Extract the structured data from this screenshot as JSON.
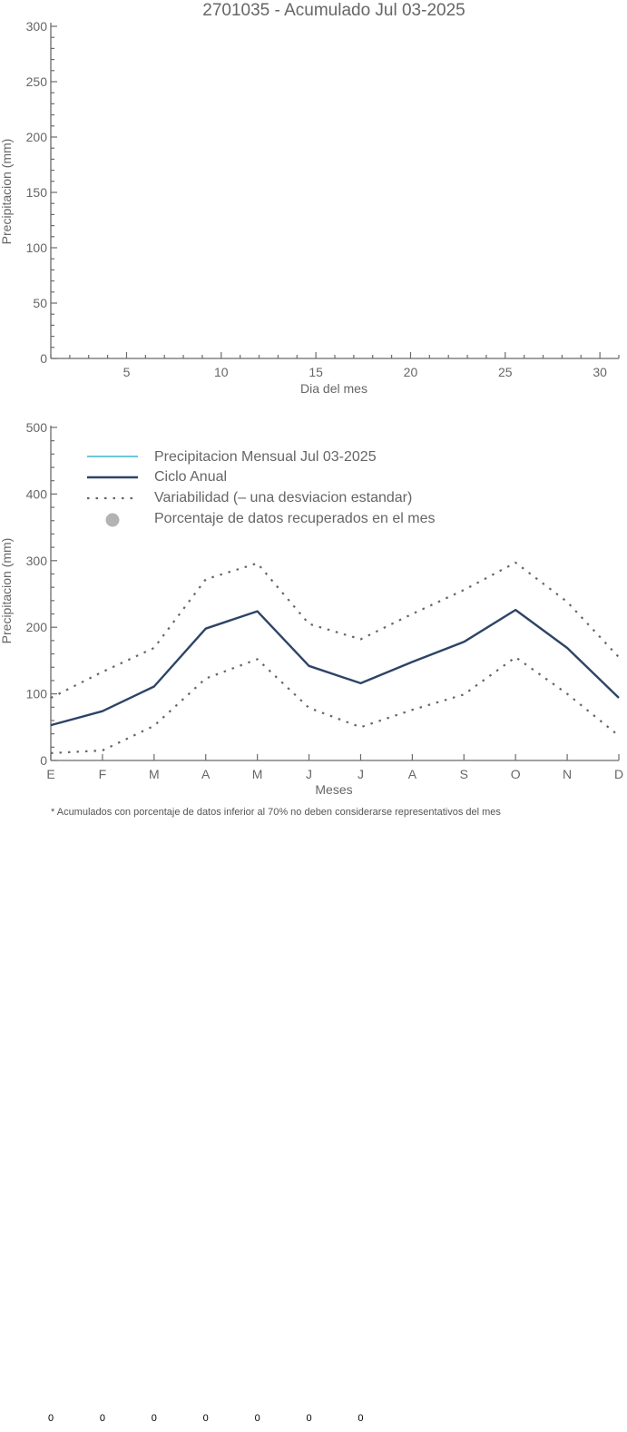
{
  "chart_data": [
    {
      "type": "line",
      "title": "2701035 - Acumulado Jul 03-2025",
      "xlabel": "Dia del mes",
      "ylabel": "Precipitacion (mm)",
      "xlim": [
        1,
        31
      ],
      "ylim": [
        0,
        300
      ],
      "x_ticks": [
        5,
        10,
        15,
        20,
        25,
        30
      ],
      "y_ticks": [
        0,
        50,
        100,
        150,
        200,
        250,
        300
      ],
      "series": []
    },
    {
      "type": "line",
      "xlabel": "Meses",
      "ylabel": "Precipitacion (mm)",
      "categories": [
        "E",
        "F",
        "M",
        "A",
        "M",
        "J",
        "J",
        "A",
        "S",
        "O",
        "N",
        "D"
      ],
      "ylim": [
        0,
        500
      ],
      "y_ticks": [
        0,
        100,
        200,
        300,
        400,
        500
      ],
      "legend": [
        {
          "label": "Precipitacion Mensual Jul 03-2025",
          "style": "line",
          "color": "#3db3cf"
        },
        {
          "label": "Ciclo Anual",
          "style": "line",
          "color": "#2d4466"
        },
        {
          "label": "Variabilidad (– una desviacion estandar)",
          "style": "dotted",
          "color": "#666666"
        },
        {
          "label": "Porcentaje de datos recuperados en el mes",
          "style": "marker",
          "color": "#b3b3b3"
        }
      ],
      "series": [
        {
          "name": "Ciclo Anual",
          "color": "#2d4466",
          "values": [
            53,
            74,
            111,
            198,
            224,
            142,
            116,
            148,
            178,
            226,
            169,
            94
          ]
        },
        {
          "name": "Variabilidad (– una desviacion estandar)",
          "part": "upper",
          "color": "#666666",
          "values": [
            94,
            133,
            169,
            272,
            296,
            205,
            182,
            220,
            256,
            297,
            238,
            155
          ]
        },
        {
          "name": "Variabilidad (– una desviacion estandar)",
          "part": "lower",
          "color": "#666666",
          "values": [
            11,
            15,
            52,
            123,
            152,
            79,
            50,
            76,
            99,
            155,
            100,
            37
          ]
        }
      ],
      "footnote": "* Acumulados con porcentaje de datos inferior al 70% no deben considerarse representativos del mes"
    }
  ],
  "bottom_values": [
    "0",
    "0",
    "0",
    "0",
    "0",
    "0",
    "0"
  ]
}
